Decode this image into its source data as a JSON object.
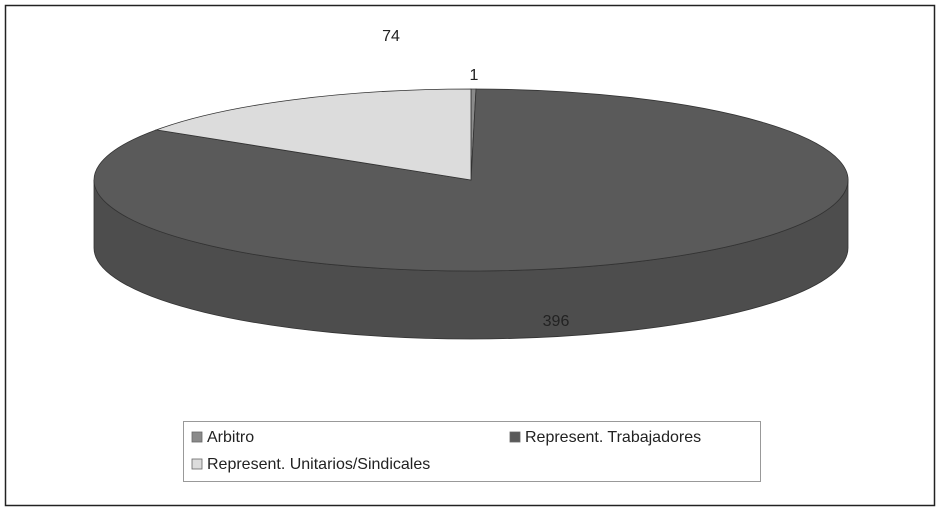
{
  "chart_data": {
    "type": "pie",
    "categories": [
      "Arbitro",
      "Represent. Trabajadores",
      "Represent. Unitarios/Sindicales"
    ],
    "values": [
      1,
      396,
      74
    ],
    "colors": [
      "#8a8a8a",
      "#5a5a5a",
      "#dcdcdc"
    ],
    "legend": "bottom"
  }
}
